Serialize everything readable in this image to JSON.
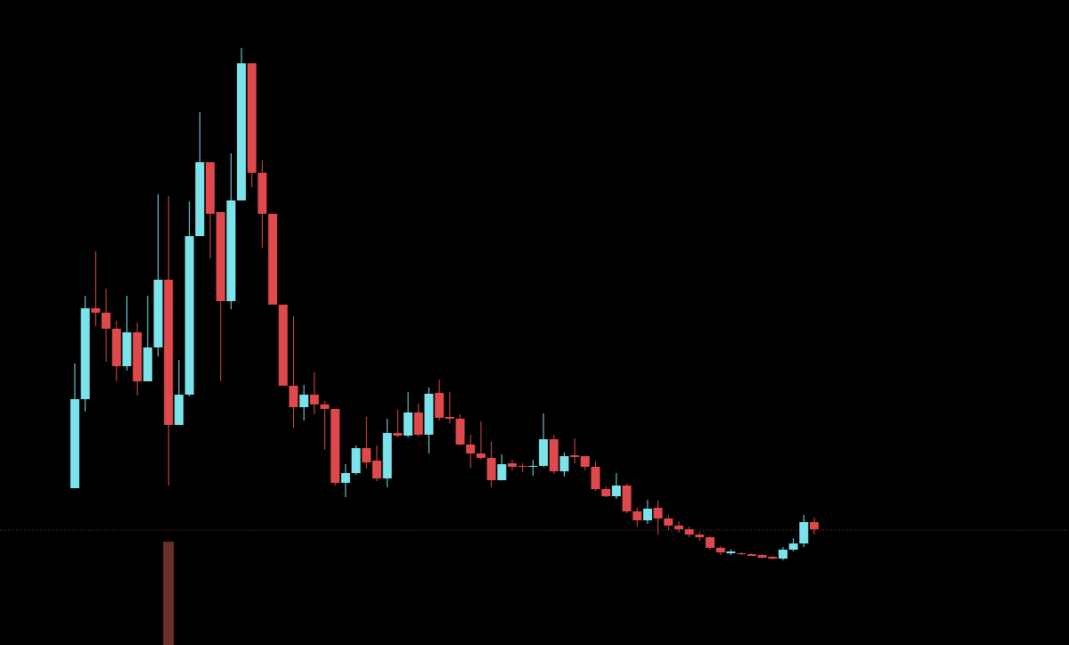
{
  "chart_data": {
    "type": "candlestick",
    "open": [
      176,
      276,
      378,
      373,
      355,
      313,
      351,
      296,
      334,
      410,
      247,
      281,
      459,
      542,
      486,
      386,
      499,
      653,
      530,
      484,
      382,
      291,
      267,
      281,
      270,
      265,
      182,
      193,
      221,
      207,
      187,
      238,
      235,
      261,
      236,
      283,
      256,
      254,
      225,
      215,
      210,
      185,
      204,
      201,
      200,
      201,
      231,
      195,
      213,
      212,
      200,
      175,
      167,
      179,
      150,
      140,
      154,
      142,
      134,
      130,
      124,
      121,
      109,
      103,
      103,
      102,
      101,
      99,
      97,
      107,
      114,
      138
    ],
    "high": [
      316,
      392,
      442,
      400,
      364,
      392,
      362,
      392,
      506,
      504,
      320,
      498,
      598,
      542,
      486,
      552,
      670,
      653,
      544,
      484,
      382,
      369,
      292,
      306,
      274,
      265,
      203,
      224,
      256,
      224,
      254,
      264,
      284,
      271,
      289,
      298,
      284,
      259,
      236,
      251,
      228,
      214,
      208,
      204,
      208,
      260,
      236,
      216,
      232,
      212,
      206,
      178,
      193,
      181,
      154,
      163,
      162,
      146,
      139,
      133,
      127,
      122,
      111,
      107,
      104,
      103,
      102,
      100,
      110,
      120,
      146,
      143
    ],
    "low": [
      176,
      262,
      358,
      318,
      296,
      308,
      280,
      296,
      324,
      179,
      247,
      279,
      459,
      434,
      296,
      377,
      499,
      514,
      446,
      382,
      291,
      244,
      252,
      259,
      219,
      179,
      166,
      191,
      198,
      184,
      177,
      233,
      233,
      234,
      215,
      252,
      249,
      224,
      199,
      208,
      177,
      185,
      196,
      194,
      190,
      200,
      192,
      189,
      204,
      196,
      173,
      166,
      164,
      148,
      133,
      136,
      124,
      129,
      126,
      121,
      117,
      107,
      101,
      101,
      101,
      100,
      97,
      96,
      95,
      105,
      110,
      124
    ],
    "close": [
      276,
      378,
      373,
      355,
      313,
      351,
      296,
      334,
      410,
      247,
      281,
      459,
      542,
      484,
      386,
      499,
      653,
      530,
      484,
      382,
      291,
      267,
      281,
      270,
      265,
      182,
      193,
      221,
      205,
      187,
      238,
      235,
      261,
      236,
      282,
      255,
      254,
      225,
      215,
      210,
      185,
      203,
      200,
      200,
      201,
      231,
      195,
      212,
      211,
      200,
      175,
      167,
      179,
      150,
      140,
      153,
      142,
      134,
      130,
      124,
      121,
      109,
      104,
      105,
      102,
      100,
      98,
      97,
      107,
      114,
      138,
      130
    ],
    "volume": [
      null,
      null,
      null,
      null,
      null,
      null,
      null,
      null,
      null,
      116,
      null,
      null,
      null,
      null,
      null,
      null,
      null,
      null,
      null,
      null,
      null,
      null,
      null,
      null,
      null,
      null,
      null,
      null,
      null,
      null,
      null,
      null,
      null,
      null,
      null,
      null,
      null,
      null,
      null,
      null,
      null,
      null,
      null,
      null,
      null,
      null,
      null,
      null,
      null,
      null,
      null,
      null,
      null,
      null,
      null,
      null,
      null,
      null,
      null,
      null,
      null,
      null,
      null,
      null,
      null,
      null,
      null,
      null,
      null,
      null,
      null,
      null
    ],
    "volume_color": "#6b2f2a",
    "price_line": 129,
    "price_line_color": "#7a4a40",
    "up_color": "#7be3ec",
    "down_color": "#e0494b",
    "ylim": [
      0,
      724
    ]
  }
}
